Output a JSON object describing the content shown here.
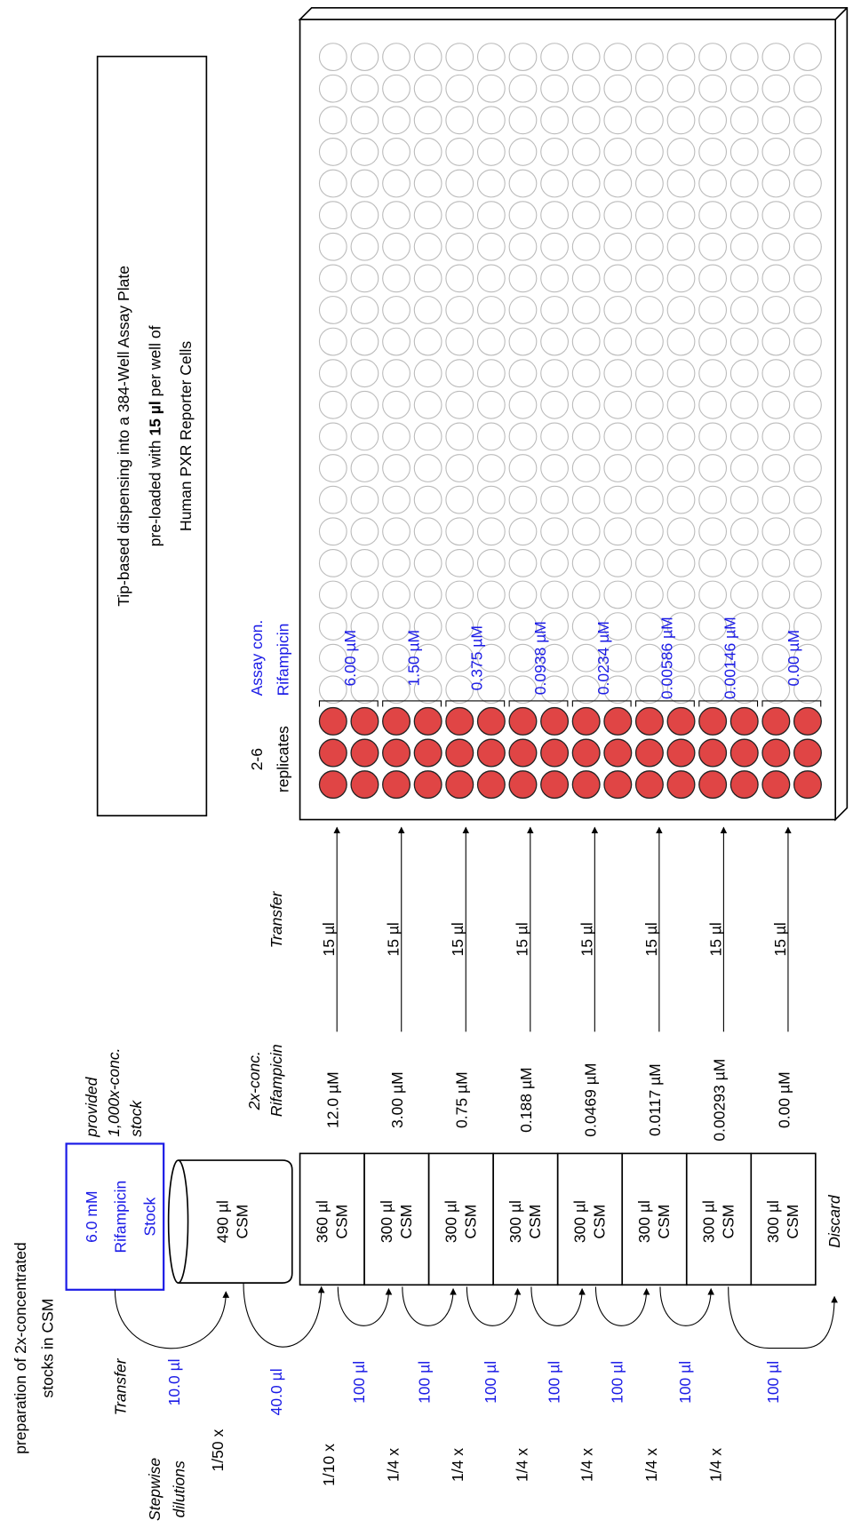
{
  "header": {
    "title": [
      "preparation of 2x-concentrated",
      "stocks in CSM"
    ]
  },
  "columns": {
    "dilutions": [
      "Stepwise",
      "dilutions"
    ],
    "transfer_left": "Transfer",
    "stock_conc": [
      "2x-conc.",
      "Rifampicin"
    ],
    "transfer_right": "Transfer",
    "replicates": [
      "2-6",
      "replicates"
    ],
    "assay_conc": [
      "Assay con.",
      "Rifampicin"
    ]
  },
  "stock": {
    "label": [
      "6.0 mM",
      "Rifampicin",
      "Stock"
    ],
    "note": [
      "provided",
      "1,000x-conc.",
      "stock"
    ],
    "dilution": "1/50 x",
    "transfer": "10.0 µl"
  },
  "beaker": {
    "label": [
      "490 µl",
      "CSM"
    ],
    "transfer": "40.0 µl"
  },
  "dilutions": [
    "1/10 x",
    "1/4 x",
    "1/4 x",
    "1/4 x",
    "1/4 x",
    "1/4 x",
    "1/4 x"
  ],
  "serial_transfers": [
    "100 µl",
    "100 µl",
    "100 µl",
    "100 µl",
    "100 µl",
    "100 µl",
    "100 µl"
  ],
  "rows": [
    {
      "volume": "360 µl",
      "medium": "CSM",
      "stock_conc": "12.0 µM",
      "dispense": "15 µl",
      "assay_conc": "6.00 µM"
    },
    {
      "volume": "300 µl",
      "medium": "CSM",
      "stock_conc": "3.00 µM",
      "dispense": "15 µl",
      "assay_conc": "1.50 µM"
    },
    {
      "volume": "300 µl",
      "medium": "CSM",
      "stock_conc": "0.75 µM",
      "dispense": "15 µl",
      "assay_conc": "0.375 µM"
    },
    {
      "volume": "300 µl",
      "medium": "CSM",
      "stock_conc": "0.188 µM",
      "dispense": "15 µl",
      "assay_conc": "0.0938 µM"
    },
    {
      "volume": "300 µl",
      "medium": "CSM",
      "stock_conc": "0.0469 µM",
      "dispense": "15 µl",
      "assay_conc": "0.0234 µM"
    },
    {
      "volume": "300 µl",
      "medium": "CSM",
      "stock_conc": "0.0117 µM",
      "dispense": "15 µl",
      "assay_conc": "0.00586 µM"
    },
    {
      "volume": "300 µl",
      "medium": "CSM",
      "stock_conc": "0.00293 µM",
      "dispense": "15 µl",
      "assay_conc": "0.00146 µM"
    },
    {
      "volume": "300 µl",
      "medium": "CSM",
      "stock_conc": "0.00 µM",
      "dispense": "15 µl",
      "assay_conc": "0.00 µM"
    }
  ],
  "discard": "Discard",
  "plate": {
    "title": {
      "line1": "Tip-based dispensing into a 384-Well Assay Plate",
      "line2": [
        "pre-loaded with ",
        "15 µl",
        " per well of"
      ],
      "line3": "Human PXR Reporter Cells"
    }
  }
}
